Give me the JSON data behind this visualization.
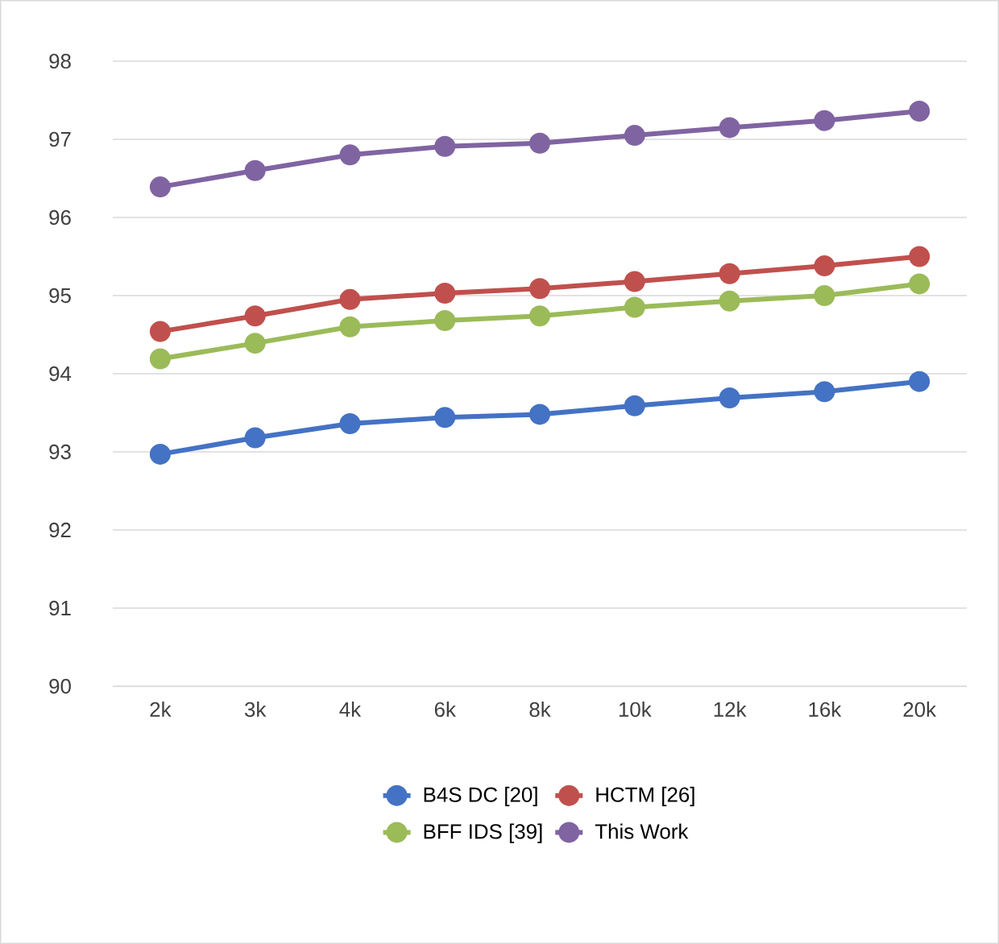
{
  "chart_data": {
    "type": "line",
    "categories": [
      "2k",
      "3k",
      "4k",
      "6k",
      "8k",
      "10k",
      "12k",
      "16k",
      "20k"
    ],
    "series": [
      {
        "name": "B4S DC [20]",
        "color": "#4472c4",
        "values": [
          92.97,
          93.18,
          93.36,
          93.44,
          93.48,
          93.59,
          93.69,
          93.77,
          93.9
        ]
      },
      {
        "name": "HCTM [26]",
        "color": "#c0504d",
        "values": [
          94.54,
          94.74,
          94.95,
          95.03,
          95.09,
          95.18,
          95.28,
          95.38,
          95.5
        ]
      },
      {
        "name": "BFF IDS [39]",
        "color": "#9bbb59",
        "values": [
          94.19,
          94.39,
          94.6,
          94.68,
          94.74,
          94.85,
          94.93,
          95.0,
          95.15
        ]
      },
      {
        "name": "This Work",
        "color": "#8064a2",
        "values": [
          96.39,
          96.6,
          96.8,
          96.91,
          96.95,
          97.05,
          97.15,
          97.24,
          97.36
        ]
      }
    ],
    "ylim": [
      90,
      98
    ],
    "yticks": [
      90,
      91,
      92,
      93,
      94,
      95,
      96,
      97,
      98
    ],
    "grid": "y",
    "legend": "bottom",
    "marker": "circle",
    "line_style": "solid"
  }
}
